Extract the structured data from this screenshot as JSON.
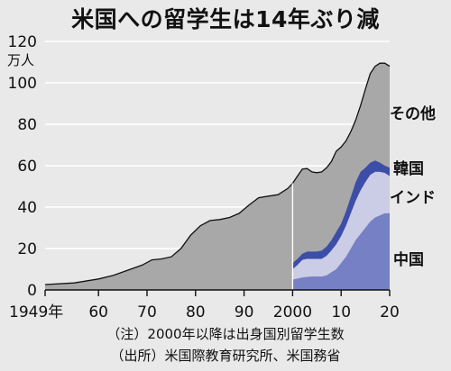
{
  "title": "米国への留学生は14年ぶり減",
  "notes": [
    "（注）2000年以降は出身国別留学生数",
    "（出所）米国際教育研究所、米国務省"
  ],
  "colors": {
    "total": "#a8a8a8",
    "china": "#7680c4",
    "india": "#cbcde6",
    "korea": "#3d4ea8",
    "background": "#e9e9e9"
  },
  "chart_data": {
    "type": "area",
    "title": "米国への留学生は14年ぶり減",
    "ylabel": "万人",
    "ylim": [
      0,
      120
    ],
    "yticks": [
      0,
      20,
      40,
      60,
      80,
      100,
      120
    ],
    "xlim": [
      1949,
      2020
    ],
    "xticks": [
      {
        "value": 1949,
        "label": "1949年"
      },
      {
        "value": 1960,
        "label": "60"
      },
      {
        "value": 1970,
        "label": "70"
      },
      {
        "value": 1980,
        "label": "80"
      },
      {
        "value": 1990,
        "label": "90"
      },
      {
        "value": 2000,
        "label": "2000"
      },
      {
        "value": 2010,
        "label": "10"
      },
      {
        "value": 2020,
        "label": "20"
      }
    ],
    "x": [
      1949,
      1955,
      1960,
      1963,
      1966,
      1969,
      1971,
      1973,
      1975,
      1977,
      1979,
      1981,
      1983,
      1985,
      1987,
      1989,
      1991,
      1993,
      1995,
      1997,
      1999,
      2000,
      2001,
      2002,
      2003,
      2004,
      2005,
      2006,
      2007,
      2008,
      2009,
      2010,
      2011,
      2012,
      2013,
      2014,
      2015,
      2016,
      2017,
      2018,
      2019,
      2020
    ],
    "series": [
      {
        "name": "その他",
        "values": [
          2.6,
          3.4,
          5.3,
          7.0,
          9.5,
          12.0,
          14.5,
          15.0,
          16.0,
          20.0,
          26.5,
          31.0,
          33.5,
          34.0,
          35.0,
          37.0,
          41.0,
          44.5,
          45.3,
          46.0,
          49.0,
          51.5,
          55.0,
          58.4,
          58.6,
          57.0,
          56.6,
          57.0,
          59.0,
          62.0,
          67.0,
          69.0,
          72.0,
          76.5,
          82.0,
          89.0,
          97.0,
          104.5,
          108.0,
          109.5,
          109.5,
          108.0
        ]
      },
      {
        "name": "韓国",
        "values": [
          null,
          null,
          null,
          null,
          null,
          null,
          null,
          null,
          null,
          null,
          null,
          null,
          null,
          null,
          null,
          null,
          null,
          null,
          null,
          null,
          null,
          13.0,
          15.0,
          17.5,
          18.5,
          18.5,
          18.5,
          19.0,
          21.0,
          24.0,
          28.0,
          32.0,
          38.0,
          45.0,
          52.0,
          57.0,
          59.0,
          61.5,
          62.5,
          61.5,
          60.0,
          59.0
        ]
      },
      {
        "name": "インド",
        "values": [
          null,
          null,
          null,
          null,
          null,
          null,
          null,
          null,
          null,
          null,
          null,
          null,
          null,
          null,
          null,
          null,
          null,
          null,
          null,
          null,
          null,
          10.0,
          12.0,
          14.5,
          15.0,
          15.0,
          15.0,
          15.0,
          16.5,
          19.0,
          22.0,
          26.0,
          31.0,
          37.0,
          43.0,
          48.0,
          52.0,
          55.5,
          57.0,
          57.0,
          56.5,
          55.0
        ]
      },
      {
        "name": "中国",
        "values": [
          null,
          null,
          null,
          null,
          null,
          null,
          null,
          null,
          null,
          null,
          null,
          null,
          null,
          null,
          null,
          null,
          null,
          null,
          null,
          null,
          null,
          5.0,
          5.5,
          6.0,
          6.3,
          6.5,
          6.5,
          6.5,
          7.0,
          8.5,
          10.0,
          13.0,
          16.0,
          20.0,
          24.0,
          27.0,
          30.0,
          33.0,
          35.0,
          36.0,
          37.0,
          37.0
        ]
      }
    ],
    "labels": [
      {
        "text": "その他",
        "series": "その他"
      },
      {
        "text": "韓国",
        "series": "韓国"
      },
      {
        "text": "インド",
        "series": "インド"
      },
      {
        "text": "中国",
        "series": "中国"
      }
    ]
  }
}
